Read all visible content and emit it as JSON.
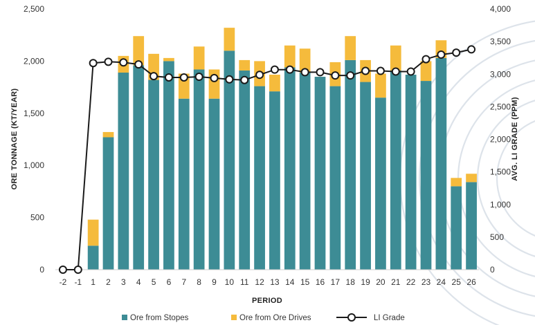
{
  "chart_data": {
    "type": "bar",
    "stacked": true,
    "xlabel": "PERIOD",
    "ylabel": "ORE TONNAGE (KT/YEAR)",
    "y2label": "AVG. LI GRADE (PPM)",
    "ylim": [
      0,
      2500
    ],
    "y_ticks": [
      "0",
      "500",
      "1,000",
      "1,500",
      "2,000",
      "2,500"
    ],
    "y_tick_values": [
      0,
      500,
      1000,
      1500,
      2000,
      2500
    ],
    "y2lim": [
      0,
      4000
    ],
    "y2_ticks": [
      "0",
      "500",
      "1,000",
      "1,500",
      "2,000",
      "2,500",
      "3,000",
      "3,500",
      "4,000"
    ],
    "y2_tick_values": [
      0,
      500,
      1000,
      1500,
      2000,
      2500,
      3000,
      3500,
      4000
    ],
    "categories": [
      "-2",
      "-1",
      "1",
      "2",
      "3",
      "4",
      "5",
      "6",
      "7",
      "8",
      "9",
      "10",
      "11",
      "12",
      "13",
      "14",
      "15",
      "16",
      "17",
      "18",
      "19",
      "20",
      "21",
      "22",
      "23",
      "24",
      "25",
      "26"
    ],
    "series": [
      {
        "name": "Ore from Stopes",
        "kind": "bar",
        "color": "#3d8c95",
        "values": [
          0,
          0,
          230,
          1270,
          1890,
          1960,
          1820,
          2000,
          1640,
          1920,
          1640,
          2100,
          1910,
          1760,
          1710,
          1940,
          1890,
          1850,
          1760,
          2010,
          1800,
          1650,
          1910,
          1870,
          1810,
          2030,
          800,
          840
        ]
      },
      {
        "name": "Ore from Ore Drives",
        "kind": "bar",
        "color": "#f5bb3c",
        "values": [
          0,
          0,
          250,
          50,
          160,
          280,
          250,
          30,
          240,
          220,
          280,
          220,
          100,
          240,
          160,
          210,
          230,
          0,
          230,
          230,
          210,
          230,
          240,
          0,
          190,
          170,
          80,
          80
        ]
      },
      {
        "name": "LI Grade",
        "kind": "line",
        "axis": "y2",
        "color": "#1a1a1a",
        "values": [
          0,
          0,
          3170,
          3190,
          3180,
          3150,
          2970,
          2950,
          2950,
          2960,
          2940,
          2920,
          2910,
          2990,
          3070,
          3070,
          3030,
          3030,
          2980,
          2980,
          3050,
          3050,
          3040,
          3040,
          3230,
          3300,
          3330,
          3380
        ]
      }
    ],
    "legend_position": "bottom",
    "grid": false
  }
}
